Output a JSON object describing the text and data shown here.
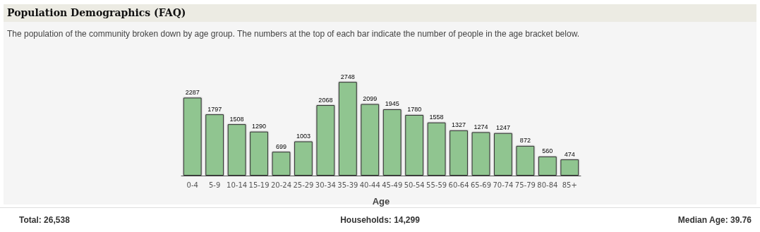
{
  "chart_data": {
    "type": "bar",
    "title": "Population Demographics (FAQ)",
    "subtitle": "The population of the community broken down by age group. The numbers at the top of each bar indicate the number of people in the age bracket below.",
    "xlabel": "Age",
    "categories": [
      "0-4",
      "5-9",
      "10-14",
      "15-19",
      "20-24",
      "25-29",
      "30-34",
      "35-39",
      "40-44",
      "45-49",
      "50-54",
      "55-59",
      "60-64",
      "65-69",
      "70-74",
      "75-79",
      "80-84",
      "85+"
    ],
    "values": [
      2287,
      1797,
      1508,
      1290,
      699,
      1003,
      2068,
      2748,
      2099,
      1945,
      1780,
      1558,
      1327,
      1274,
      1247,
      872,
      560,
      474
    ],
    "color": "#90c590",
    "data_labels": true,
    "annotations": [
      "Total: 26,538",
      "Households: 14,299",
      "Median Age: 39.76"
    ]
  }
}
